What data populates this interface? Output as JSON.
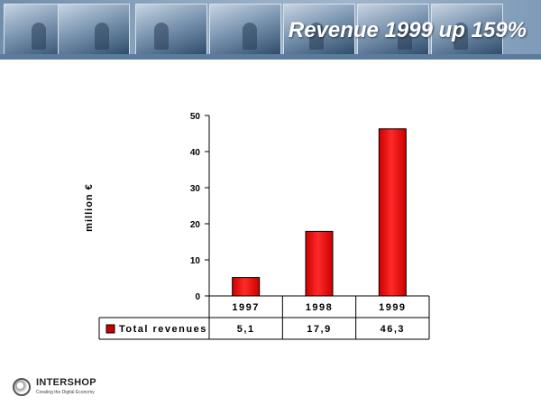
{
  "slide": {
    "title": "Revenue 1999 up 159%"
  },
  "logo": {
    "name": "INTERSHOP",
    "tagline": "Creating the Digital Economy"
  },
  "colors": {
    "bar": "#cc0000",
    "bar_highlight": "#ff2a2a",
    "banner": "#7f9bb8"
  },
  "chart_data": {
    "type": "bar",
    "ylabel": "million €",
    "ylim": [
      0,
      50
    ],
    "yticks": [
      "0",
      "10",
      "20",
      "30",
      "40",
      "50"
    ],
    "categories": [
      "1997",
      "1998",
      "1999"
    ],
    "series": [
      {
        "name": "Total revenues",
        "values": [
          5.1,
          17.9,
          46.3
        ]
      }
    ],
    "data_table": {
      "row_label": "Total revenues",
      "values": [
        "5,1",
        "17,9",
        "46,3"
      ]
    },
    "legend": "bottom-left (data table)"
  }
}
